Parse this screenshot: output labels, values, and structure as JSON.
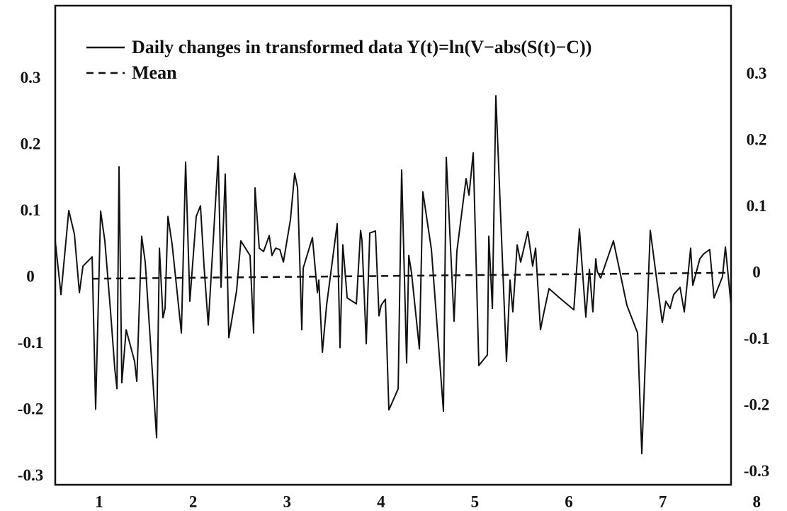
{
  "chart_data": {
    "type": "line",
    "xlim": [
      0.532,
      7.727
    ],
    "ylim": [
      -0.312,
      0.411
    ],
    "xticks": [
      1,
      2,
      3,
      4,
      5,
      6,
      7,
      8
    ],
    "yticks": [
      -0.3,
      -0.2,
      -0.1,
      0,
      0.1,
      0.2,
      0.3
    ],
    "series": [
      {
        "name": "Daily changes in transformed data Y(t)=ln(V−abs(S(t)−C))",
        "color": "#111111",
        "style": "solid",
        "x": [
          0.532,
          0.593,
          0.676,
          0.736,
          0.789,
          0.827,
          0.925,
          0.962,
          1.015,
          1.06,
          1.121,
          1.166,
          1.189,
          1.211,
          1.241,
          1.287,
          1.377,
          1.4,
          1.452,
          1.49,
          1.611,
          1.641,
          1.679,
          1.701,
          1.732,
          1.777,
          1.875,
          1.92,
          1.965,
          2.033,
          2.078,
          2.116,
          2.161,
          2.267,
          2.297,
          2.342,
          2.38,
          2.463,
          2.508,
          2.606,
          2.644,
          2.659,
          2.704,
          2.75,
          2.81,
          2.84,
          2.878,
          2.923,
          2.961,
          3.036,
          3.081,
          3.112,
          3.157,
          3.172,
          3.27,
          3.323,
          3.338,
          3.376,
          3.421,
          3.534,
          3.564,
          3.594,
          3.64,
          3.738,
          3.783,
          3.798,
          3.843,
          3.881,
          3.941,
          3.979,
          4.002,
          4.047,
          4.084,
          4.137,
          4.183,
          4.22,
          4.273,
          4.296,
          4.326,
          4.409,
          4.446,
          4.537,
          4.665,
          4.695,
          4.778,
          4.808,
          4.906,
          4.937,
          4.982,
          5.042,
          5.133,
          5.148,
          5.186,
          5.223,
          5.336,
          5.374,
          5.404,
          5.45,
          5.487,
          5.563,
          5.615,
          5.646,
          5.698,
          5.736,
          5.789,
          5.902,
          6.053,
          6.113,
          6.181,
          6.219,
          6.256,
          6.287,
          6.302,
          6.339,
          6.475,
          6.618,
          6.732,
          6.777,
          6.867,
          6.995,
          7.033,
          7.078,
          7.116,
          7.184,
          7.229,
          7.259,
          7.297,
          7.32,
          7.395,
          7.433,
          7.47,
          7.5,
          7.546,
          7.636,
          7.667,
          7.727
        ],
        "values": [
          0.056,
          -0.025,
          0.102,
          0.066,
          -0.022,
          0.018,
          0.032,
          -0.198,
          0.101,
          0.056,
          -0.051,
          -0.137,
          -0.167,
          0.168,
          -0.158,
          -0.078,
          -0.126,
          -0.156,
          0.063,
          0.024,
          -0.241,
          0.045,
          -0.06,
          -0.046,
          0.093,
          0.05,
          -0.083,
          0.175,
          -0.035,
          0.093,
          0.109,
          0.018,
          -0.071,
          0.184,
          -0.014,
          0.157,
          -0.09,
          -0.019,
          0.056,
          0.034,
          -0.083,
          0.136,
          0.045,
          0.04,
          0.064,
          0.034,
          0.045,
          0.043,
          0.024,
          0.088,
          0.158,
          0.136,
          -0.078,
          0.015,
          0.061,
          -0.022,
          -0.003,
          -0.112,
          -0.041,
          0.082,
          -0.105,
          0.05,
          -0.03,
          -0.039,
          0.072,
          0.056,
          -0.099,
          0.068,
          0.071,
          -0.057,
          -0.041,
          -0.032,
          -0.199,
          -0.182,
          -0.167,
          0.163,
          -0.128,
          0.034,
          0.007,
          -0.107,
          0.13,
          0.043,
          -0.201,
          0.182,
          -0.065,
          0.04,
          0.15,
          0.125,
          0.189,
          -0.132,
          -0.116,
          0.063,
          -0.046,
          0.275,
          -0.126,
          -0.003,
          -0.051,
          0.05,
          0.024,
          0.07,
          0.018,
          0.045,
          -0.078,
          -0.051,
          -0.016,
          -0.03,
          -0.048,
          0.074,
          -0.059,
          0.013,
          -0.051,
          0.029,
          0.01,
          0,
          0.056,
          -0.041,
          -0.083,
          -0.265,
          0.072,
          -0.067,
          -0.035,
          -0.046,
          -0.025,
          -0.014,
          -0.051,
          -0.009,
          0.045,
          -0.011,
          0.029,
          0.036,
          0.04,
          0.043,
          -0.03,
          0.002,
          0.047,
          -0.041
        ]
      },
      {
        "name": "Mean",
        "color": "#111111",
        "style": "dashed",
        "x": [
          0.925,
          7.727
        ],
        "values": [
          -0.001,
          0.008
        ]
      }
    ]
  }
}
